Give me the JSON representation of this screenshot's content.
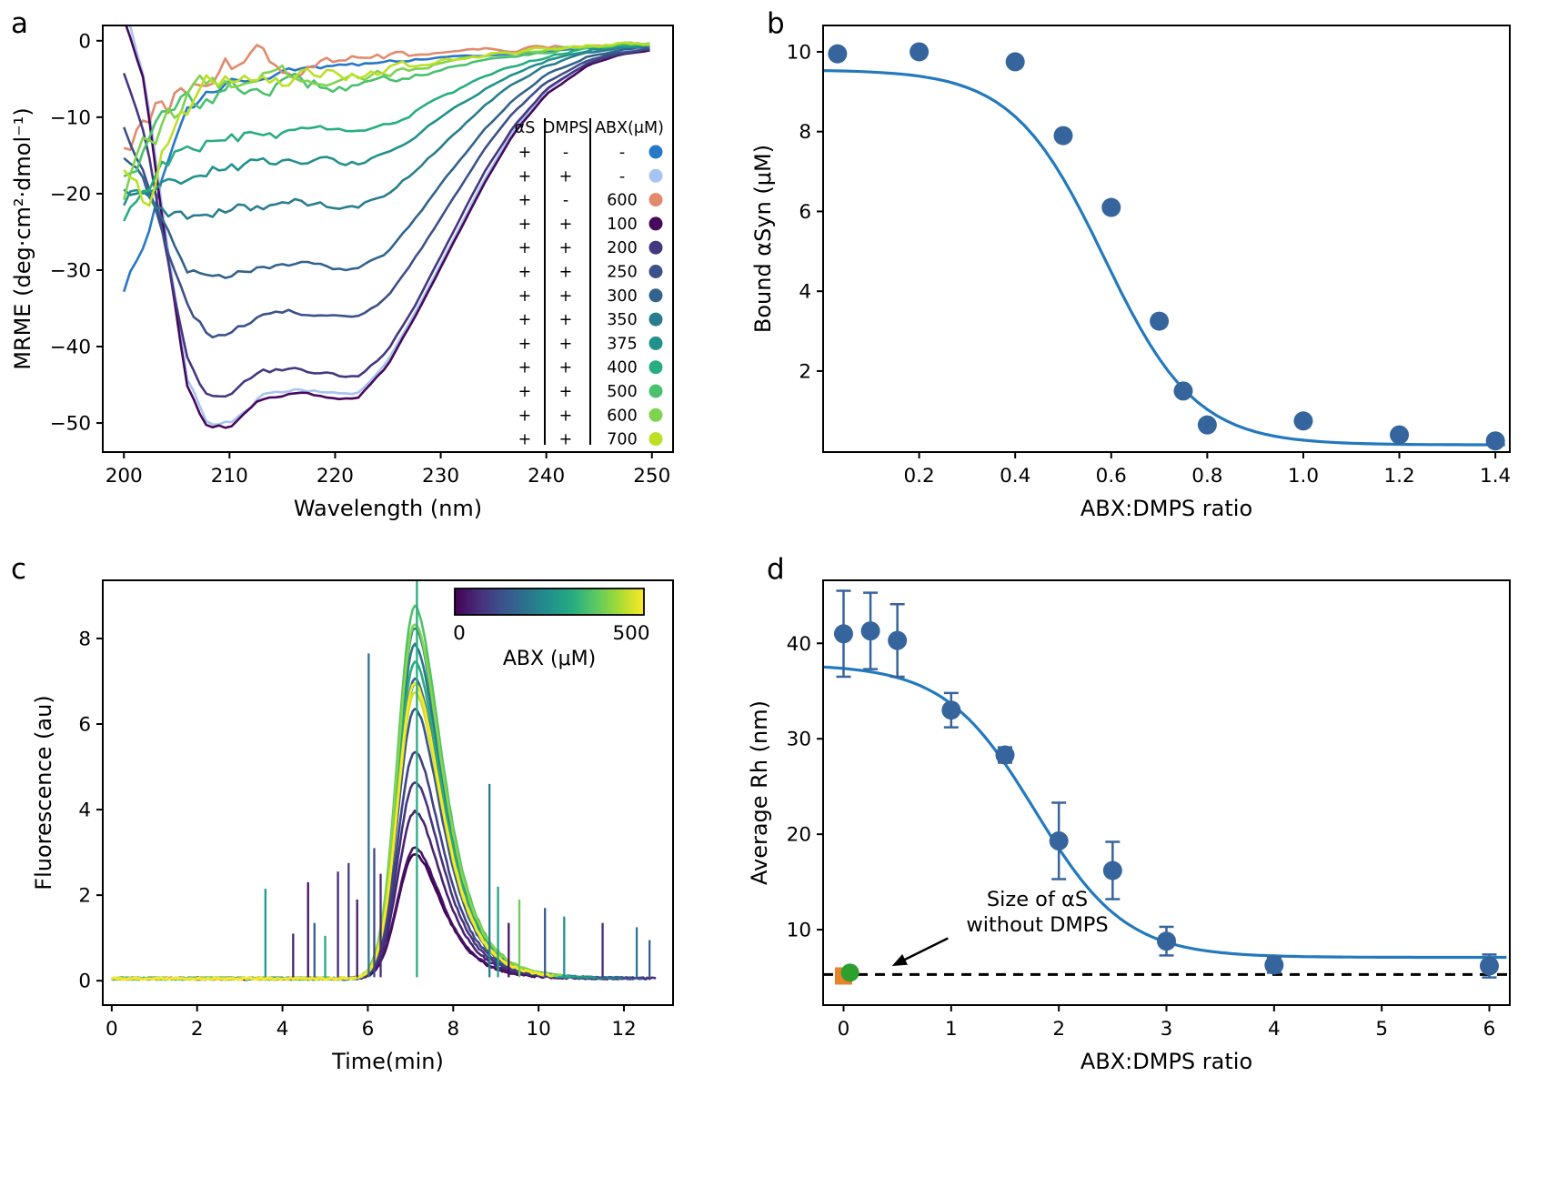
{
  "figure": {
    "background": "#ffffff",
    "panels": [
      {
        "label": "a"
      },
      {
        "label": "b"
      },
      {
        "label": "c"
      },
      {
        "label": "d"
      }
    ]
  },
  "chart_data": [
    {
      "id": "a",
      "type": "line",
      "title": "",
      "xlabel": "Wavelength (nm)",
      "ylabel": "MRME (deg·cm²·dmol⁻¹)",
      "xlim": [
        198,
        252
      ],
      "ylim": [
        -53.8,
        2.0
      ],
      "xticks": [
        200,
        210,
        220,
        230,
        240,
        250
      ],
      "xticklabels": [
        "200",
        "210",
        "220",
        "230",
        "240",
        "250"
      ],
      "yticks": [
        0,
        -10,
        -20,
        -30,
        -40,
        -50
      ],
      "yticklabels": [
        "0",
        "−10",
        "−20",
        "−30",
        "−40",
        "−50"
      ],
      "grid": false,
      "x": [
        200,
        202,
        204,
        206,
        208,
        210,
        213,
        216,
        219,
        222,
        225,
        228,
        231,
        234,
        237,
        240,
        244,
        247,
        250
      ],
      "series": [
        {
          "name": "aS only",
          "color": "#2878c8",
          "noise": 0.5,
          "values": [
            -32.5,
            -26,
            -16,
            -9.5,
            -7,
            -5.5,
            -4.5,
            -4,
            -3.6,
            -3.2,
            -2.8,
            -2.4,
            -2.1,
            -1.9,
            -1.6,
            -1.4,
            -1.0,
            -0.7,
            -0.5
          ]
        },
        {
          "name": "aS + DMPS",
          "color": "#a8c4f0",
          "noise": 0.3,
          "values": [
            5,
            -5,
            -26,
            -44,
            -50.5,
            -50,
            -46.5,
            -45.5,
            -46,
            -46.5,
            -42,
            -34.5,
            -26.5,
            -18.5,
            -11.5,
            -6.5,
            -2.8,
            -1.5,
            -1.0
          ]
        },
        {
          "name": "aS + ABX 600",
          "color": "#e18a6c",
          "noise": 1.6,
          "values": [
            -13,
            -11,
            -9,
            -7,
            -5,
            -3.5,
            -2,
            -3.5,
            -1.5,
            -2.5,
            -2,
            -1.8,
            -1.5,
            -1.3,
            -1.1,
            -0.9,
            -0.7,
            -0.5,
            -0.4
          ]
        },
        {
          "name": "ABX 100",
          "color": "#46085c",
          "noise": 0.3,
          "values": [
            3,
            -6,
            -27,
            -45,
            -51,
            -50.5,
            -47,
            -46,
            -46.5,
            -47,
            -42.5,
            -35,
            -27,
            -19,
            -12,
            -7,
            -3.2,
            -1.8,
            -1.2
          ]
        },
        {
          "name": "ABX 200",
          "color": "#453781",
          "noise": 0.4,
          "values": [
            -4,
            -12,
            -28,
            -41.5,
            -46.5,
            -46,
            -43.5,
            -43,
            -43.5,
            -44,
            -40.5,
            -33.5,
            -25.5,
            -17.5,
            -11,
            -6.3,
            -2.9,
            -1.7,
            -1.1
          ]
        },
        {
          "name": "ABX 250",
          "color": "#3c508b",
          "noise": 0.5,
          "values": [
            -11,
            -17,
            -27,
            -35,
            -38.5,
            -38,
            -36,
            -35.5,
            -36,
            -36.5,
            -33.5,
            -27.5,
            -21,
            -14.5,
            -9.2,
            -5.4,
            -2.5,
            -1.5,
            -1.0
          ]
        },
        {
          "name": "ABX 300",
          "color": "#33638d",
          "noise": 0.6,
          "values": [
            -15,
            -19,
            -25,
            -29.5,
            -31.5,
            -31,
            -29.5,
            -29,
            -29.5,
            -30,
            -27.5,
            -22.5,
            -17,
            -11.8,
            -7.5,
            -4.4,
            -2.0,
            -1.2,
            -0.8
          ]
        },
        {
          "name": "ABX 350",
          "color": "#287d8e",
          "noise": 0.8,
          "values": [
            -19,
            -21,
            -22.5,
            -23,
            -23,
            -22.5,
            -21.5,
            -21,
            -21.5,
            -22,
            -20,
            -16.5,
            -12.5,
            -8.6,
            -5.5,
            -3.3,
            -1.5,
            -0.9,
            -0.6
          ]
        },
        {
          "name": "ABX 375",
          "color": "#21918c",
          "noise": 0.9,
          "values": [
            -21,
            -19.5,
            -18.5,
            -17.5,
            -17,
            -16.5,
            -16,
            -15.5,
            -15.8,
            -16,
            -14.5,
            -12,
            -9.1,
            -6.4,
            -4.2,
            -2.6,
            -1.2,
            -0.8,
            -0.5
          ]
        },
        {
          "name": "ABX 400",
          "color": "#27ad81",
          "noise": 1.0,
          "values": [
            -23,
            -19,
            -15.5,
            -14,
            -13.5,
            -13,
            -12.5,
            -12,
            -12.2,
            -12.5,
            -11,
            -9,
            -6.9,
            -4.9,
            -3.3,
            -2.1,
            -1.0,
            -0.6,
            -0.4
          ]
        },
        {
          "name": "ABX 500",
          "color": "#4ac16d",
          "noise": 1.3,
          "values": [
            -17,
            -14,
            -10,
            -8,
            -7,
            -6.5,
            -6,
            -5.8,
            -5.8,
            -6,
            -5.2,
            -4.3,
            -3.4,
            -2.6,
            -1.9,
            -1.4,
            -0.8,
            -0.5,
            -0.3
          ]
        },
        {
          "name": "ABX 600",
          "color": "#7ed34f",
          "noise": 1.4,
          "values": [
            -20,
            -15,
            -10.5,
            -7.5,
            -5.8,
            -5,
            -4.6,
            -4.6,
            -4.6,
            -4.8,
            -4.2,
            -3.5,
            -2.8,
            -2.1,
            -1.6,
            -1.2,
            -0.7,
            -0.4,
            -0.3
          ]
        },
        {
          "name": "ABX 700",
          "color": "#bddf26",
          "noise": 1.6,
          "values": [
            -16,
            -21,
            -13,
            -8.5,
            -6,
            -4.8,
            -4.2,
            -4.8,
            -4.1,
            -4.4,
            -3.7,
            -3.1,
            -2.5,
            -1.9,
            -1.4,
            -1.0,
            -0.6,
            -0.4,
            -0.2
          ]
        }
      ],
      "legend": {
        "headers": [
          "αS",
          "DMPS",
          "ABX(μM)"
        ],
        "rows": [
          [
            "+",
            "-",
            "-",
            "#2878c8"
          ],
          [
            "+",
            "+",
            "-",
            "#a8c4f0"
          ],
          [
            "+",
            "-",
            "600",
            "#e18a6c"
          ],
          [
            "+",
            "+",
            "100",
            "#46085c"
          ],
          [
            "+",
            "+",
            "200",
            "#453781"
          ],
          [
            "+",
            "+",
            "250",
            "#3c508b"
          ],
          [
            "+",
            "+",
            "300",
            "#33638d"
          ],
          [
            "+",
            "+",
            "350",
            "#287d8e"
          ],
          [
            "+",
            "+",
            "375",
            "#21918c"
          ],
          [
            "+",
            "+",
            "400",
            "#27ad81"
          ],
          [
            "+",
            "+",
            "500",
            "#4ac16d"
          ],
          [
            "+",
            "+",
            "600",
            "#7ed34f"
          ],
          [
            "+",
            "+",
            "700",
            "#bddf26"
          ]
        ]
      }
    },
    {
      "id": "b",
      "type": "scatter",
      "title": "",
      "xlabel": "ABX:DMPS ratio",
      "ylabel": "Bound αSyn (μM)",
      "xlim": [
        0,
        1.43
      ],
      "ylim": [
        -0.03,
        10.66
      ],
      "xticks": [
        0.2,
        0.4,
        0.6,
        0.8,
        1.0,
        1.2,
        1.4
      ],
      "xticklabels": [
        "0.2",
        "0.4",
        "0.6",
        "0.8",
        "1.0",
        "1.2",
        "1.4"
      ],
      "yticks": [
        2,
        4,
        6,
        8,
        10
      ],
      "yticklabels": [
        "2",
        "4",
        "6",
        "8",
        "10"
      ],
      "grid": false,
      "points": {
        "x": [
          0.03,
          0.2,
          0.4,
          0.5,
          0.6,
          0.7,
          0.75,
          0.8,
          1.0,
          1.2,
          1.4
        ],
        "y": [
          9.95,
          10.0,
          9.75,
          7.9,
          6.1,
          3.25,
          1.5,
          0.65,
          0.75,
          0.4,
          0.25
        ]
      },
      "marker": {
        "color": "#36649c",
        "radius": 10.5
      },
      "fit": {
        "color": "#2379bd",
        "top": 9.55,
        "bottom": 0.15,
        "x0": 0.585,
        "k": 0.095
      }
    },
    {
      "id": "c",
      "type": "line",
      "title": "",
      "xlabel": "Time(min)",
      "ylabel": "Fluorescence (au)",
      "xlim": [
        -0.21,
        13.15
      ],
      "ylim": [
        -0.57,
        9.36
      ],
      "xticks": [
        0,
        2,
        4,
        6,
        8,
        10,
        12
      ],
      "xticklabels": [
        "0",
        "2",
        "4",
        "6",
        "8",
        "10",
        "12"
      ],
      "yticks": [
        0,
        2,
        4,
        6,
        8
      ],
      "yticklabels": [
        "0",
        "2",
        "4",
        "6",
        "8"
      ],
      "grid": false,
      "colormap": [
        "#440154",
        "#472d7b",
        "#3b528b",
        "#2c728e",
        "#21918c",
        "#27ad81",
        "#5ec962",
        "#aadc32",
        "#fde725"
      ],
      "colorbar": {
        "label": "ABX (μM)",
        "min_label": "0",
        "max_label": "500"
      },
      "peak_shape": {
        "center": 7.1,
        "sigma_left": 0.4,
        "sigma_right_base": 0.52,
        "sigma_right_slope": 0.17,
        "baseline": 0.05
      },
      "series": [
        {
          "t": 0.0,
          "peak": 2.9,
          "xend": 12.6
        },
        {
          "t": 0.05,
          "peak": 3.05,
          "xend": 11.8
        },
        {
          "t": 0.1,
          "peak": 3.9,
          "xend": 12.2
        },
        {
          "t": 0.15,
          "peak": 4.6,
          "xend": 12.8
        },
        {
          "t": 0.2,
          "peak": 5.3,
          "xend": 11.2
        },
        {
          "t": 0.26,
          "peak": 6.3,
          "xend": 12.5
        },
        {
          "t": 0.33,
          "peak": 7.0,
          "xend": 10.9
        },
        {
          "t": 0.4,
          "peak": 7.8,
          "xend": 12.0
        },
        {
          "t": 0.47,
          "peak": 8.2,
          "xend": 10.6
        },
        {
          "t": 0.54,
          "peak": 6.9,
          "xend": 11.4
        },
        {
          "t": 0.62,
          "peak": 7.4,
          "xend": 10.8
        },
        {
          "t": 0.72,
          "peak": 8.7,
          "xend": 10.5
        },
        {
          "t": 0.82,
          "peak": 8.3,
          "xend": 10.6
        },
        {
          "t": 0.92,
          "peak": 6.7,
          "xend": 10.4
        },
        {
          "t": 1.0,
          "peak": 6.9,
          "xend": 10.3
        }
      ],
      "spikes": [
        {
          "x": 3.6,
          "h": 2.15,
          "t": 0.55
        },
        {
          "x": 4.25,
          "h": 1.1,
          "t": 0.1
        },
        {
          "x": 4.6,
          "h": 2.3,
          "t": 0.05
        },
        {
          "x": 4.75,
          "h": 1.35,
          "t": 0.3
        },
        {
          "x": 5.0,
          "h": 1.05,
          "t": 0.6
        },
        {
          "x": 5.3,
          "h": 2.55,
          "t": 0.12
        },
        {
          "x": 5.55,
          "h": 2.75,
          "t": 0.18
        },
        {
          "x": 5.75,
          "h": 1.9,
          "t": 0.08
        },
        {
          "x": 6.02,
          "h": 7.65,
          "t": 0.38
        },
        {
          "x": 6.15,
          "h": 3.1,
          "t": 0.22
        },
        {
          "x": 6.3,
          "h": 2.5,
          "t": 0.12
        },
        {
          "x": 7.15,
          "h": 9.45,
          "t": 0.62
        },
        {
          "x": 8.85,
          "h": 4.6,
          "t": 0.42
        },
        {
          "x": 9.05,
          "h": 2.2,
          "t": 0.58
        },
        {
          "x": 9.3,
          "h": 1.35,
          "t": 0.05
        },
        {
          "x": 9.55,
          "h": 1.9,
          "t": 0.78
        },
        {
          "x": 10.15,
          "h": 1.7,
          "t": 0.28
        },
        {
          "x": 10.6,
          "h": 1.5,
          "t": 0.5
        },
        {
          "x": 11.5,
          "h": 1.35,
          "t": 0.12
        },
        {
          "x": 12.3,
          "h": 1.25,
          "t": 0.38
        },
        {
          "x": 12.6,
          "h": 0.95,
          "t": 0.32
        }
      ]
    },
    {
      "id": "d",
      "type": "scatter-error",
      "title": "",
      "xlabel": "ABX:DMPS ratio",
      "ylabel": "Average Rh (nm)",
      "xlim": [
        -0.19,
        6.19
      ],
      "ylim": [
        2.1,
        46.6
      ],
      "xticks": [
        0,
        1,
        2,
        3,
        4,
        5,
        6
      ],
      "xticklabels": [
        "0",
        "1",
        "2",
        "3",
        "4",
        "5",
        "6"
      ],
      "yticks": [
        10,
        20,
        30,
        40
      ],
      "yticklabels": [
        "10",
        "20",
        "30",
        "40"
      ],
      "grid": false,
      "points": {
        "x": [
          0,
          0.25,
          0.5,
          1,
          1.5,
          2,
          2.5,
          3,
          4,
          6
        ],
        "y": [
          41,
          41.3,
          40.3,
          33,
          28.3,
          19.3,
          16.2,
          8.8,
          6.3,
          6.2
        ],
        "yerr": [
          4.5,
          4.0,
          3.8,
          1.8,
          0.8,
          4.0,
          3.0,
          1.5,
          0.8,
          1.2
        ]
      },
      "marker": {
        "color": "#36649c",
        "radius": 10.5
      },
      "fit": {
        "color": "#2379bd",
        "top": 37.8,
        "bottom": 7.1,
        "x0": 1.78,
        "k": 0.42
      },
      "dashed_line": {
        "y": 5.3,
        "color": "#000000"
      },
      "special_points": [
        {
          "shape": "square",
          "x": 0.0,
          "y": 5.15,
          "color": "#e8832c",
          "size": 19
        },
        {
          "shape": "circle",
          "x": 0.06,
          "y": 5.5,
          "color": "#2ca02c",
          "radius": 10
        }
      ],
      "annotation": {
        "lines": [
          "Size of αS",
          "without DMPS"
        ],
        "text_x": 1.8,
        "text_y": 12.5,
        "arrow_from": [
          0.97,
          9.1
        ],
        "arrow_to": [
          0.45,
          6.2
        ]
      }
    }
  ]
}
